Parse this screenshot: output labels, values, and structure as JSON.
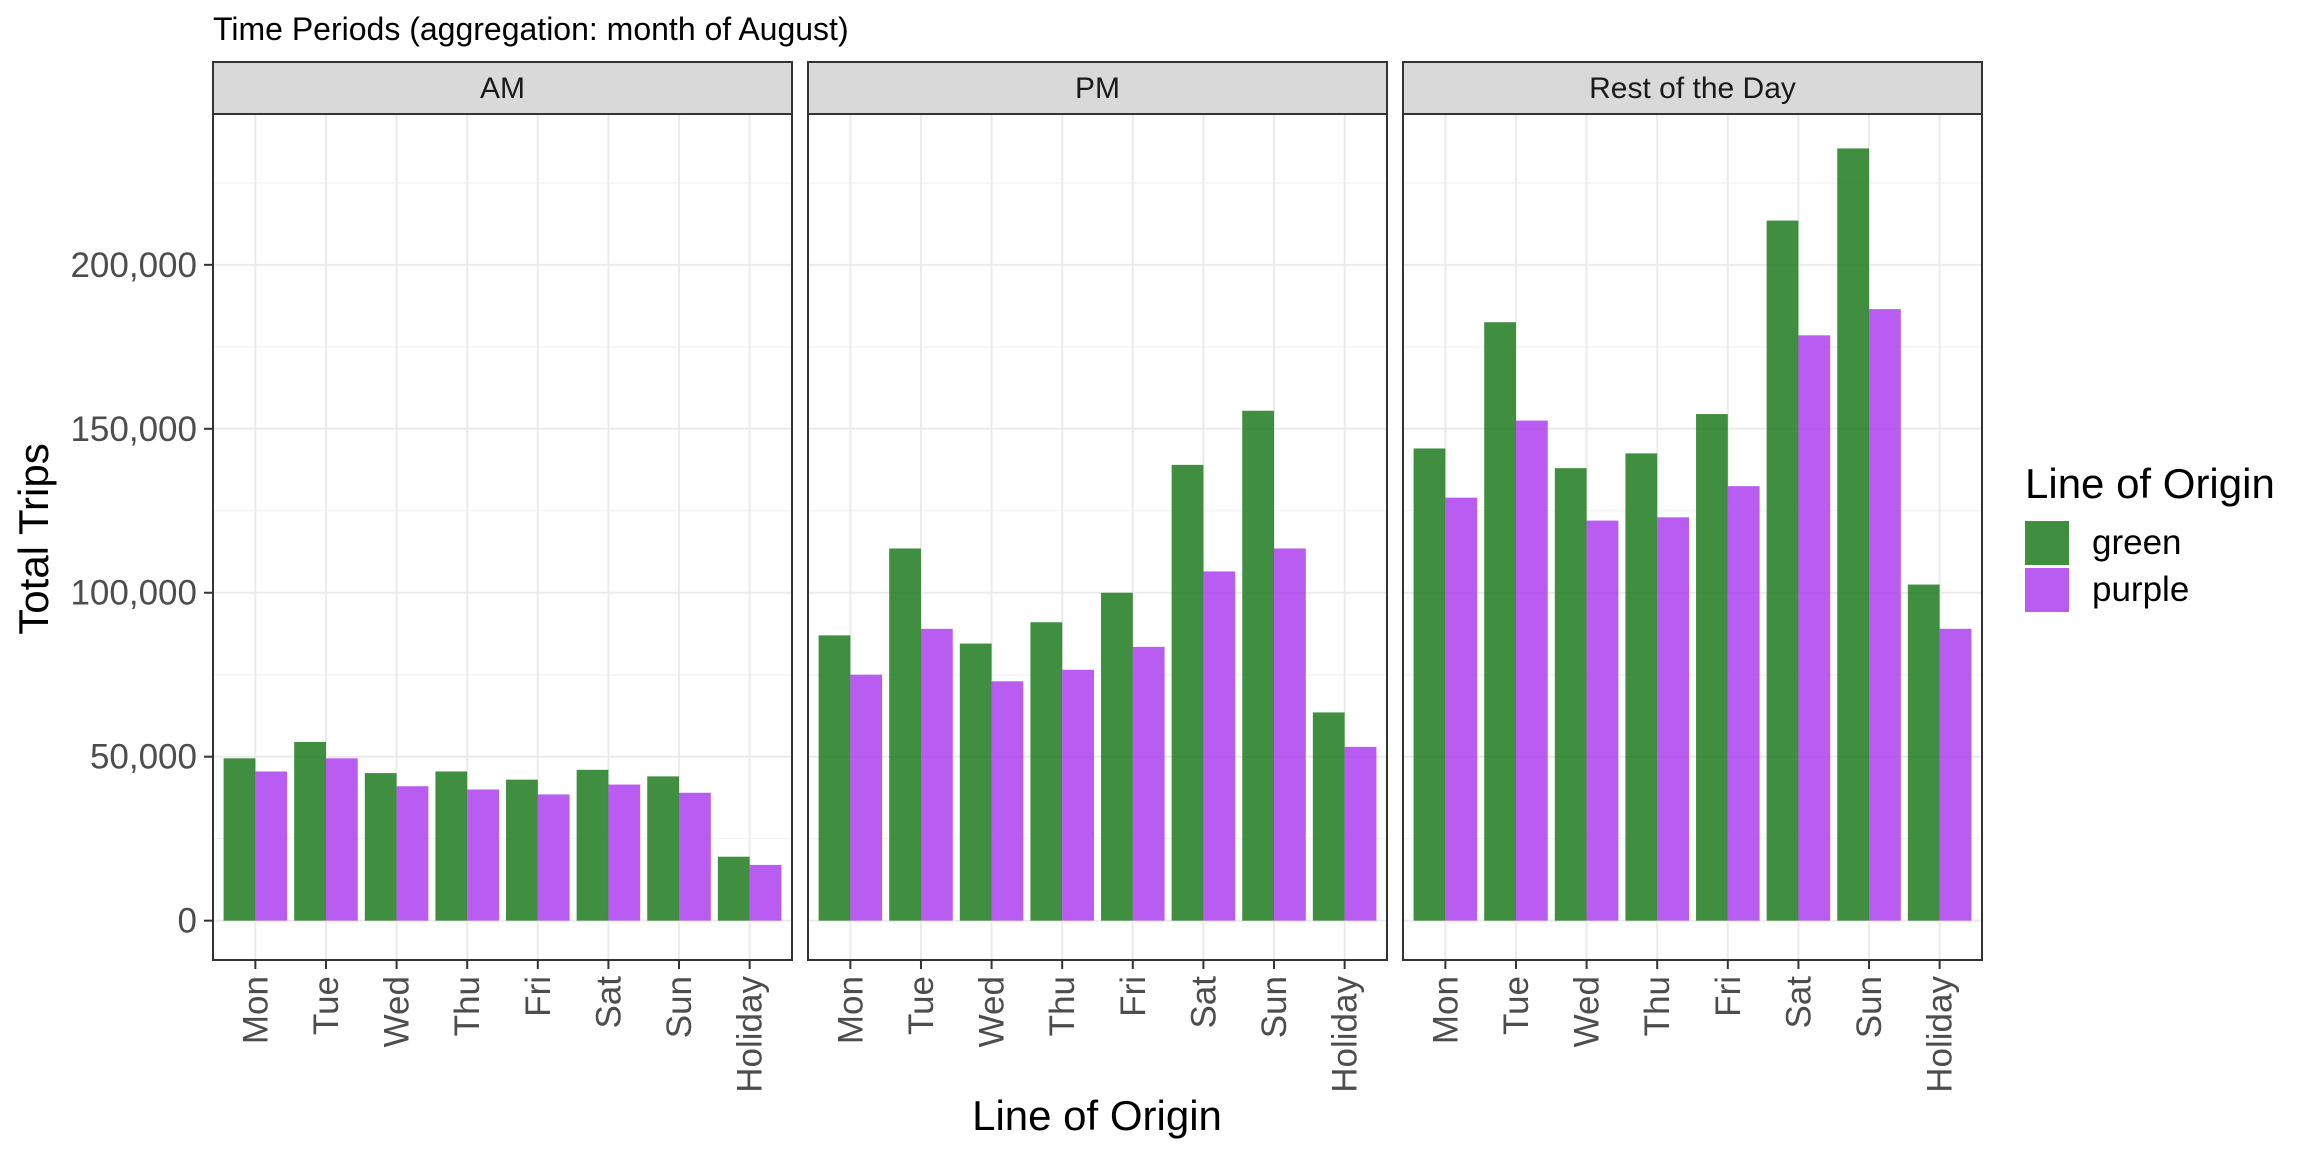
{
  "chart_data": {
    "type": "bar",
    "title": "Time Periods (aggregation: month of August)",
    "xlabel": "Line of Origin",
    "ylabel": "Total Trips",
    "ylim": [
      -12000,
      246000
    ],
    "y_ticks": [
      0,
      50000,
      100000,
      150000,
      200000
    ],
    "y_tick_labels": [
      "0",
      "50,000",
      "100,000",
      "150,000",
      "200,000"
    ],
    "grid": true,
    "legend": {
      "title": "Line of Origin",
      "placement": "right",
      "entries": [
        {
          "label": "green",
          "color": "#1e7a1e"
        },
        {
          "label": "purple",
          "color": "#ad3ff0"
        }
      ]
    },
    "categories": [
      "Mon",
      "Tue",
      "Wed",
      "Thu",
      "Fri",
      "Sat",
      "Sun",
      "Holiday"
    ],
    "panels": [
      {
        "label": "AM",
        "series": [
          {
            "name": "green",
            "values": [
              49500,
              54500,
              45000,
              45500,
              43000,
              46000,
              44000,
              19500
            ]
          },
          {
            "name": "purple",
            "values": [
              45500,
              49500,
              41000,
              40000,
              38500,
              41500,
              39000,
              17000
            ]
          }
        ]
      },
      {
        "label": "PM",
        "series": [
          {
            "name": "green",
            "values": [
              87000,
              113500,
              84500,
              91000,
              100000,
              139000,
              155500,
              63500
            ]
          },
          {
            "name": "purple",
            "values": [
              75000,
              89000,
              73000,
              76500,
              83500,
              106500,
              113500,
              53000
            ]
          }
        ]
      },
      {
        "label": "Rest of the Day",
        "series": [
          {
            "name": "green",
            "values": [
              144000,
              182500,
              138000,
              142500,
              154500,
              213500,
              235500,
              102500
            ]
          },
          {
            "name": "purple",
            "values": [
              129000,
              152500,
              122000,
              123000,
              132500,
              178500,
              186500,
              89000
            ]
          }
        ]
      }
    ]
  }
}
